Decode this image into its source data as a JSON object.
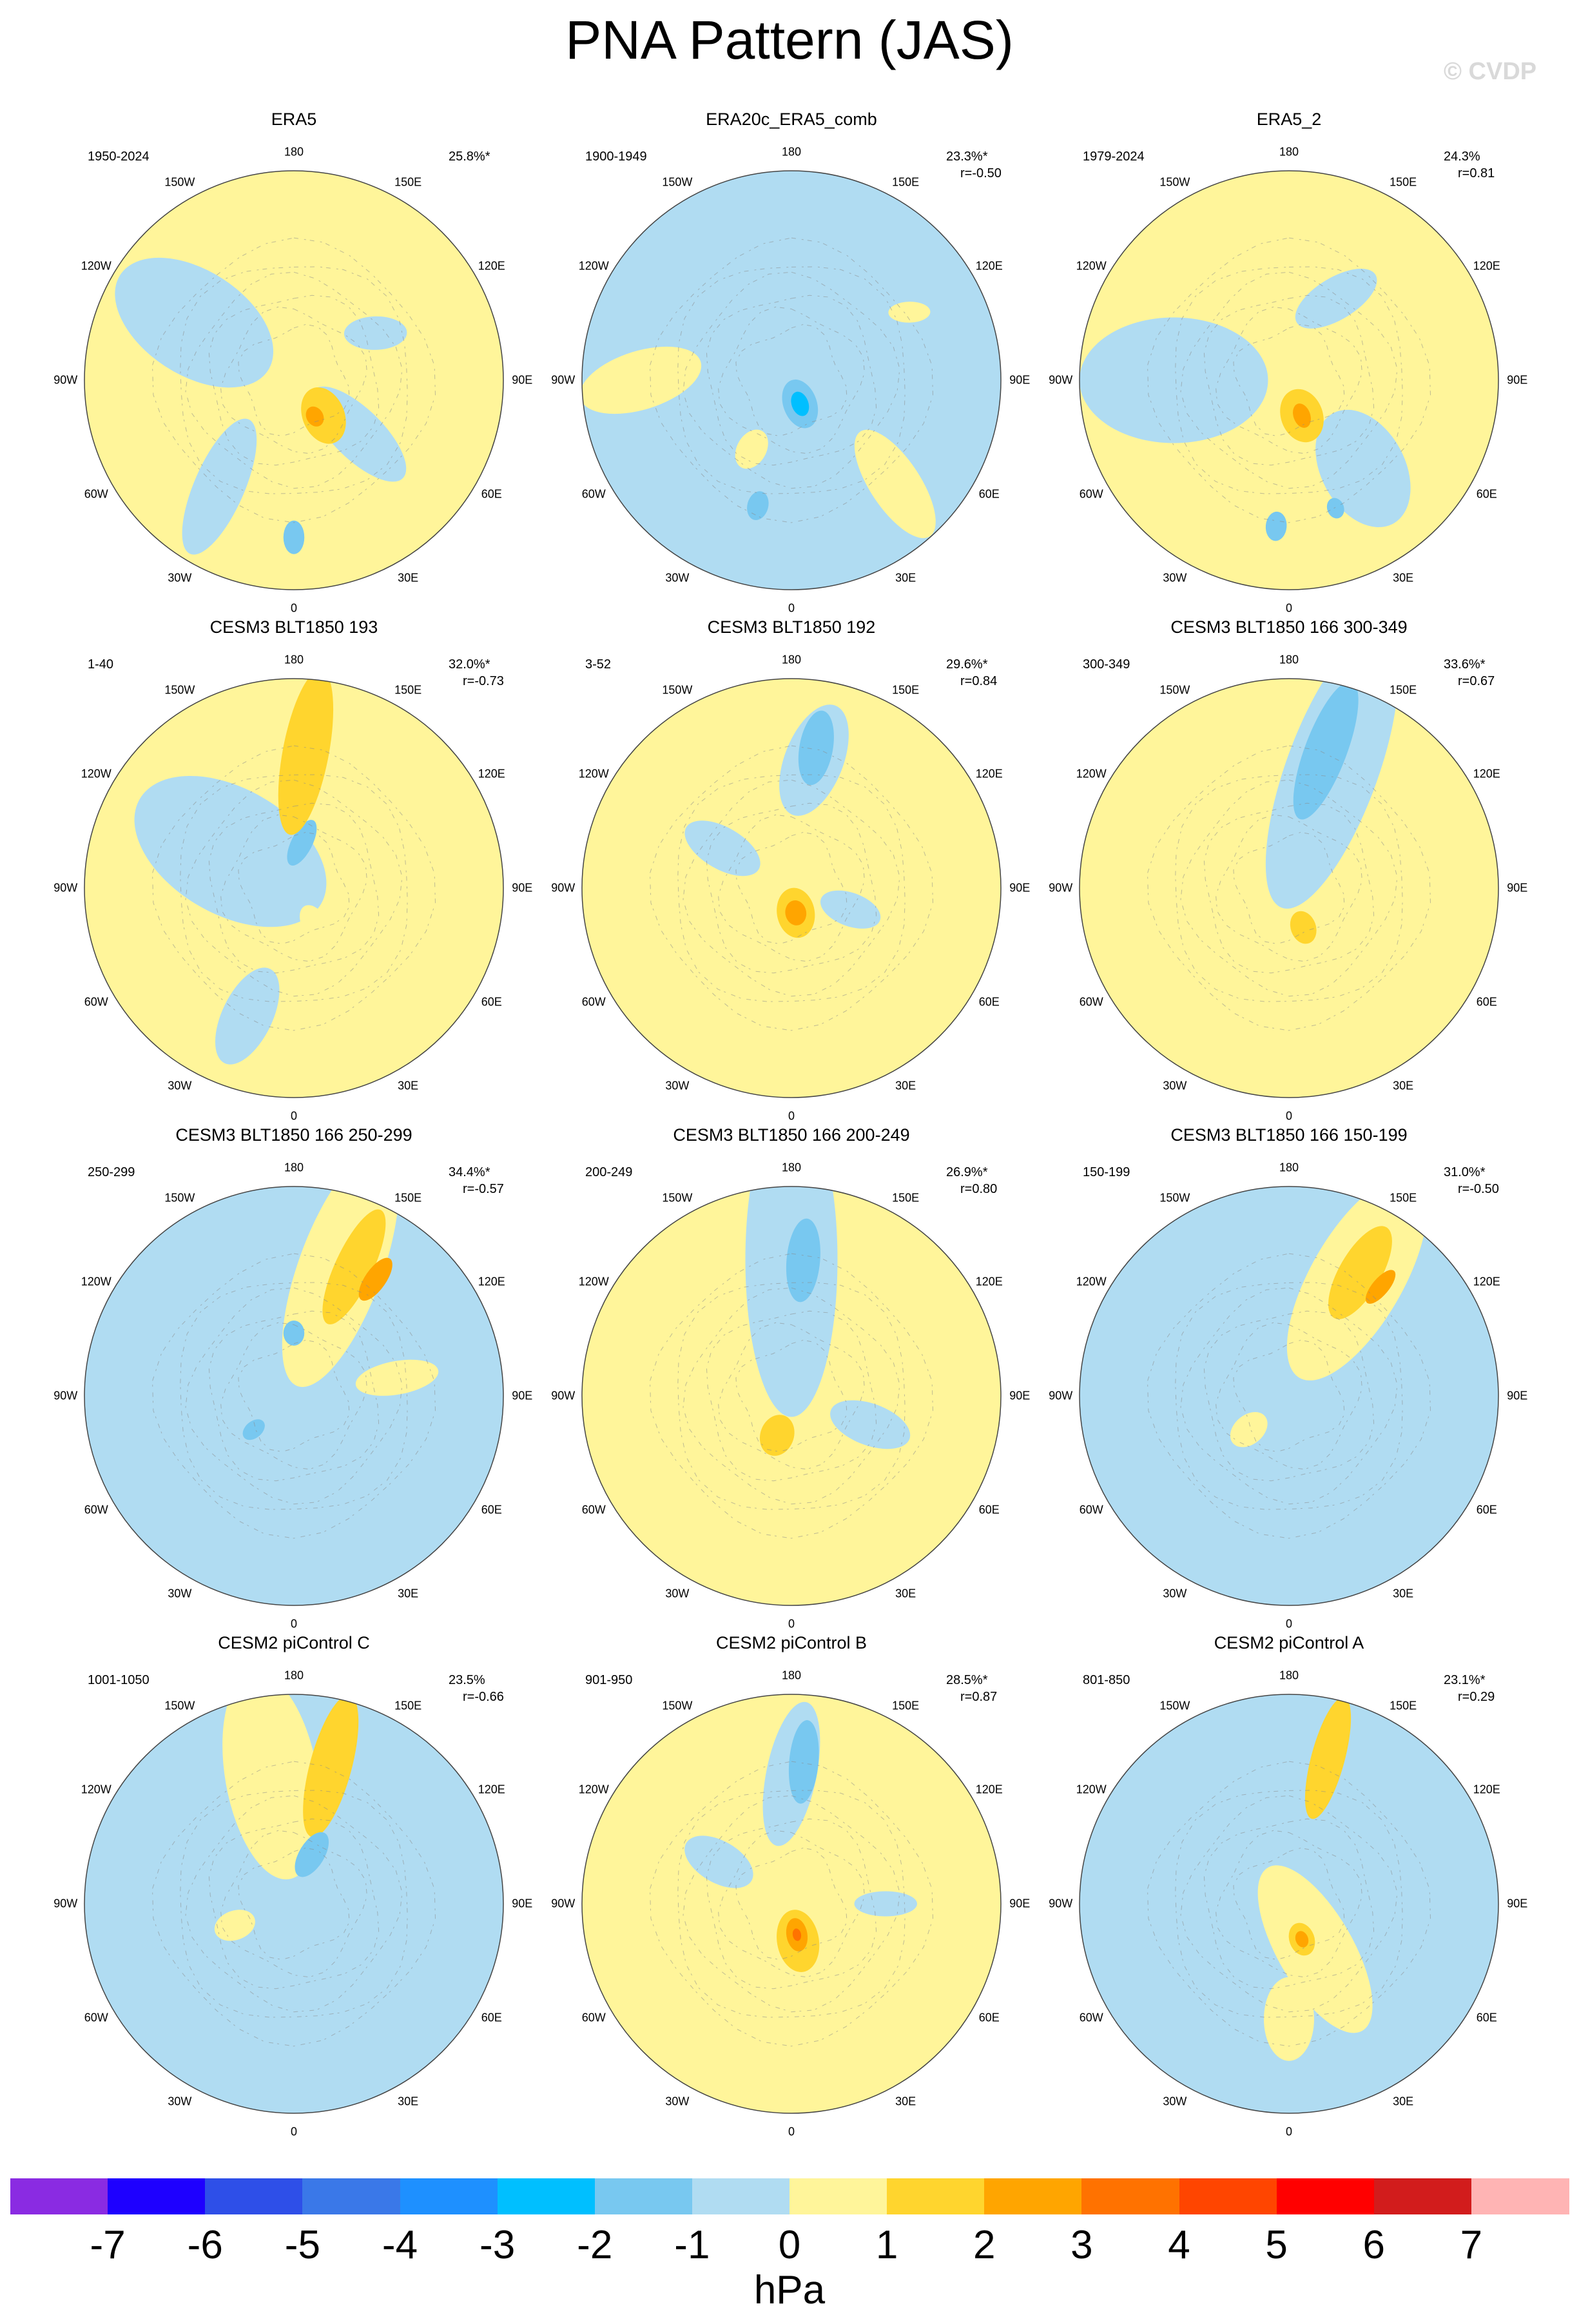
{
  "title": "PNA Pattern (JAS)",
  "watermark": "© CVDP",
  "lon_labels": [
    "180",
    "150E",
    "120E",
    "90E",
    "60E",
    "30E",
    "0",
    "30W",
    "60W",
    "90W",
    "120W",
    "150W"
  ],
  "colorbar": {
    "colors": [
      "#8a2be2",
      "#1e00ff",
      "#2e4fe8",
      "#3a78e8",
      "#1e90ff",
      "#00bfff",
      "#78c8f0",
      "#b0dcf2",
      "#fff59a",
      "#ffd52e",
      "#ffa500",
      "#ff7200",
      "#ff4500",
      "#ff0000",
      "#d21c1c",
      "#ffb4b4"
    ],
    "ticks": [
      "-7",
      "-6",
      "-5",
      "-4",
      "-3",
      "-2",
      "-1",
      "0",
      "1",
      "2",
      "3",
      "4",
      "5",
      "6",
      "7"
    ],
    "units": "hPa"
  },
  "panels": [
    {
      "title": "ERA5",
      "years": "1950-2024",
      "pct": "25.8%*",
      "r": "",
      "base": "#fff59a",
      "blobs": [
        [
          "#b0dcf2",
          0.55,
          300,
          0.42,
          0.25,
          0.05
        ],
        [
          "#b0dcf2",
          0.4,
          130,
          0.3,
          0.12,
          0.08
        ],
        [
          "#b0dcf2",
          0.62,
          215,
          0.35,
          0.12,
          -0.2
        ],
        [
          "#78c8f0",
          0.75,
          180,
          0.08,
          0.05,
          0
        ],
        [
          "#ffd52e",
          0.22,
          140,
          0.14,
          0.1,
          0.3
        ],
        [
          "#ffa500",
          0.2,
          150,
          0.05,
          0.04,
          0
        ],
        [
          "#b0dcf2",
          0.45,
          60,
          0.15,
          0.08,
          0.5
        ]
      ]
    },
    {
      "title": "ERA20c_ERA5_comb",
      "years": "1900-1949",
      "pct": "23.3%*",
      "r": "r=-0.50",
      "base": "#b0dcf2",
      "blobs": [
        [
          "#fff59a",
          0.72,
          270,
          0.3,
          0.14,
          -0.3
        ],
        [
          "#fff59a",
          0.7,
          135,
          0.3,
          0.12,
          0.2
        ],
        [
          "#fff59a",
          0.38,
          210,
          0.1,
          0.07,
          0
        ],
        [
          "#fff59a",
          0.65,
          60,
          0.1,
          0.05,
          0.5
        ],
        [
          "#78c8f0",
          0.62,
          195,
          0.07,
          0.05,
          0
        ],
        [
          "#78c8f0",
          0.12,
          160,
          0.12,
          0.08,
          0
        ],
        [
          "#00bfff",
          0.12,
          160,
          0.06,
          0.04,
          0
        ]
      ]
    },
    {
      "title": "ERA5_2",
      "years": "1979-2024",
      "pct": "24.3%",
      "r": "r=0.81",
      "base": "#fff59a",
      "blobs": [
        [
          "#b0dcf2",
          0.55,
          270,
          0.45,
          0.3,
          0
        ],
        [
          "#b0dcf2",
          0.55,
          140,
          0.3,
          0.2,
          0.2
        ],
        [
          "#b0dcf2",
          0.45,
          30,
          0.22,
          0.1,
          0.5
        ],
        [
          "#78c8f0",
          0.7,
          185,
          0.07,
          0.05,
          0
        ],
        [
          "#78c8f0",
          0.65,
          160,
          0.05,
          0.04,
          0
        ],
        [
          "#ffd52e",
          0.18,
          160,
          0.13,
          0.1,
          0
        ],
        [
          "#ffa500",
          0.18,
          160,
          0.06,
          0.04,
          0
        ]
      ]
    },
    {
      "title": "CESM3 BLT1850 193",
      "years": "1-40",
      "pct": "32.0%*",
      "r": "r=-0.73",
      "base": "#fff59a",
      "blobs": [
        [
          "#b0dcf2",
          0.35,
          300,
          0.5,
          0.3,
          0
        ],
        [
          "#b0dcf2",
          0.65,
          200,
          0.25,
          0.12,
          0.1
        ],
        [
          "#78c8f0",
          0.22,
          10,
          0.12,
          0.05,
          0.3
        ],
        [
          "#ffd52e",
          0.65,
          5,
          0.4,
          0.11,
          0.1
        ],
        [
          "#fff59a",
          0.2,
          150,
          0.1,
          0.06,
          0
        ]
      ]
    },
    {
      "title": "CESM3 BLT1850 192",
      "years": "3-52",
      "pct": "29.6%*",
      "r": "r=0.84",
      "base": "#fff59a",
      "blobs": [
        [
          "#b0dcf2",
          0.62,
          10,
          0.28,
          0.14,
          0.2
        ],
        [
          "#78c8f0",
          0.68,
          10,
          0.18,
          0.08,
          0
        ],
        [
          "#b0dcf2",
          0.38,
          300,
          0.2,
          0.1,
          0
        ],
        [
          "#b0dcf2",
          0.3,
          110,
          0.15,
          0.08,
          0
        ],
        [
          "#ffd52e",
          0.12,
          170,
          0.12,
          0.09,
          0
        ],
        [
          "#ffa500",
          0.12,
          170,
          0.06,
          0.05,
          0
        ]
      ]
    },
    {
      "title": "CESM3 BLT1850 166 300-349",
      "years": "300-349",
      "pct": "33.6%*",
      "r": "r=0.67",
      "base": "#fff59a",
      "blobs": [
        [
          "#b0dcf2",
          0.6,
          20,
          0.7,
          0.22,
          0
        ],
        [
          "#78c8f0",
          0.68,
          15,
          0.35,
          0.1,
          0.1
        ],
        [
          "#ffd52e",
          0.2,
          160,
          0.08,
          0.06,
          0
        ]
      ]
    },
    {
      "title": "CESM3 BLT1850 166 250-299",
      "years": "250-299",
      "pct": "34.4%*",
      "r": "r=-0.57",
      "base": "#b0dcf2",
      "blobs": [
        [
          "#fff59a",
          0.65,
          20,
          0.6,
          0.2,
          0
        ],
        [
          "#ffd52e",
          0.68,
          25,
          0.3,
          0.09,
          0
        ],
        [
          "#ffa500",
          0.68,
          35,
          0.12,
          0.05,
          0
        ],
        [
          "#fff59a",
          0.5,
          80,
          0.2,
          0.08,
          0
        ],
        [
          "#78c8f0",
          0.3,
          0,
          0.06,
          0.05,
          0
        ],
        [
          "#78c8f0",
          0.25,
          230,
          0.06,
          0.04,
          0
        ]
      ]
    },
    {
      "title": "CESM3 BLT1850 166 200-249",
      "years": "200-249",
      "pct": "26.9%*",
      "r": "r=0.80",
      "base": "#fff59a",
      "blobs": [
        [
          "#b0dcf2",
          0.65,
          0,
          0.75,
          0.22,
          0
        ],
        [
          "#78c8f0",
          0.65,
          5,
          0.2,
          0.08,
          0
        ],
        [
          "#b0dcf2",
          0.4,
          110,
          0.2,
          0.1,
          0
        ],
        [
          "#ffd52e",
          0.2,
          200,
          0.1,
          0.08,
          0
        ]
      ]
    },
    {
      "title": "CESM3 BLT1850 166 150-199",
      "years": "150-199",
      "pct": "31.0%*",
      "r": "r=-0.50",
      "base": "#b0dcf2",
      "blobs": [
        [
          "#fff59a",
          0.65,
          30,
          0.55,
          0.22,
          0
        ],
        [
          "#ffd52e",
          0.68,
          30,
          0.25,
          0.1,
          0
        ],
        [
          "#ffa500",
          0.68,
          40,
          0.1,
          0.04,
          0
        ],
        [
          "#fff59a",
          0.25,
          230,
          0.1,
          0.07,
          0
        ]
      ]
    },
    {
      "title": "CESM2 piControl C",
      "years": "1001-1050",
      "pct": "23.5%",
      "r": "r=-0.66",
      "base": "#b0dcf2",
      "blobs": [
        [
          "#fff59a",
          0.62,
          350,
          0.5,
          0.22,
          0
        ],
        [
          "#ffd52e",
          0.68,
          15,
          0.35,
          0.1,
          0
        ],
        [
          "#fff59a",
          0.3,
          250,
          0.1,
          0.07,
          0
        ],
        [
          "#78c8f0",
          0.25,
          20,
          0.12,
          0.06,
          0.2
        ]
      ]
    },
    {
      "title": "CESM2 piControl B",
      "years": "901-950",
      "pct": "28.5%*",
      "r": "r=0.87",
      "base": "#fff59a",
      "blobs": [
        [
          "#b0dcf2",
          0.62,
          0,
          0.35,
          0.12,
          0.2
        ],
        [
          "#78c8f0",
          0.68,
          5,
          0.2,
          0.07,
          0
        ],
        [
          "#b0dcf2",
          0.4,
          300,
          0.18,
          0.1,
          0
        ],
        [
          "#b0dcf2",
          0.45,
          90,
          0.15,
          0.06,
          0
        ],
        [
          "#ffd52e",
          0.18,
          170,
          0.15,
          0.1,
          0
        ],
        [
          "#ffa500",
          0.15,
          170,
          0.08,
          0.05,
          0
        ],
        [
          "#ff7200",
          0.15,
          170,
          0.03,
          0.02,
          0
        ]
      ]
    },
    {
      "title": "CESM2 piControl A",
      "years": "801-850",
      "pct": "23.1%*",
      "r": "r=0.29",
      "base": "#b0dcf2",
      "blobs": [
        [
          "#fff59a",
          0.25,
          150,
          0.45,
          0.18,
          0
        ],
        [
          "#ffd52e",
          0.72,
          15,
          0.3,
          0.08,
          0
        ],
        [
          "#fff59a",
          0.55,
          180,
          0.2,
          0.12,
          0
        ],
        [
          "#ffd52e",
          0.18,
          160,
          0.08,
          0.06,
          0
        ],
        [
          "#ffa500",
          0.18,
          160,
          0.04,
          0.03,
          0
        ]
      ]
    }
  ]
}
